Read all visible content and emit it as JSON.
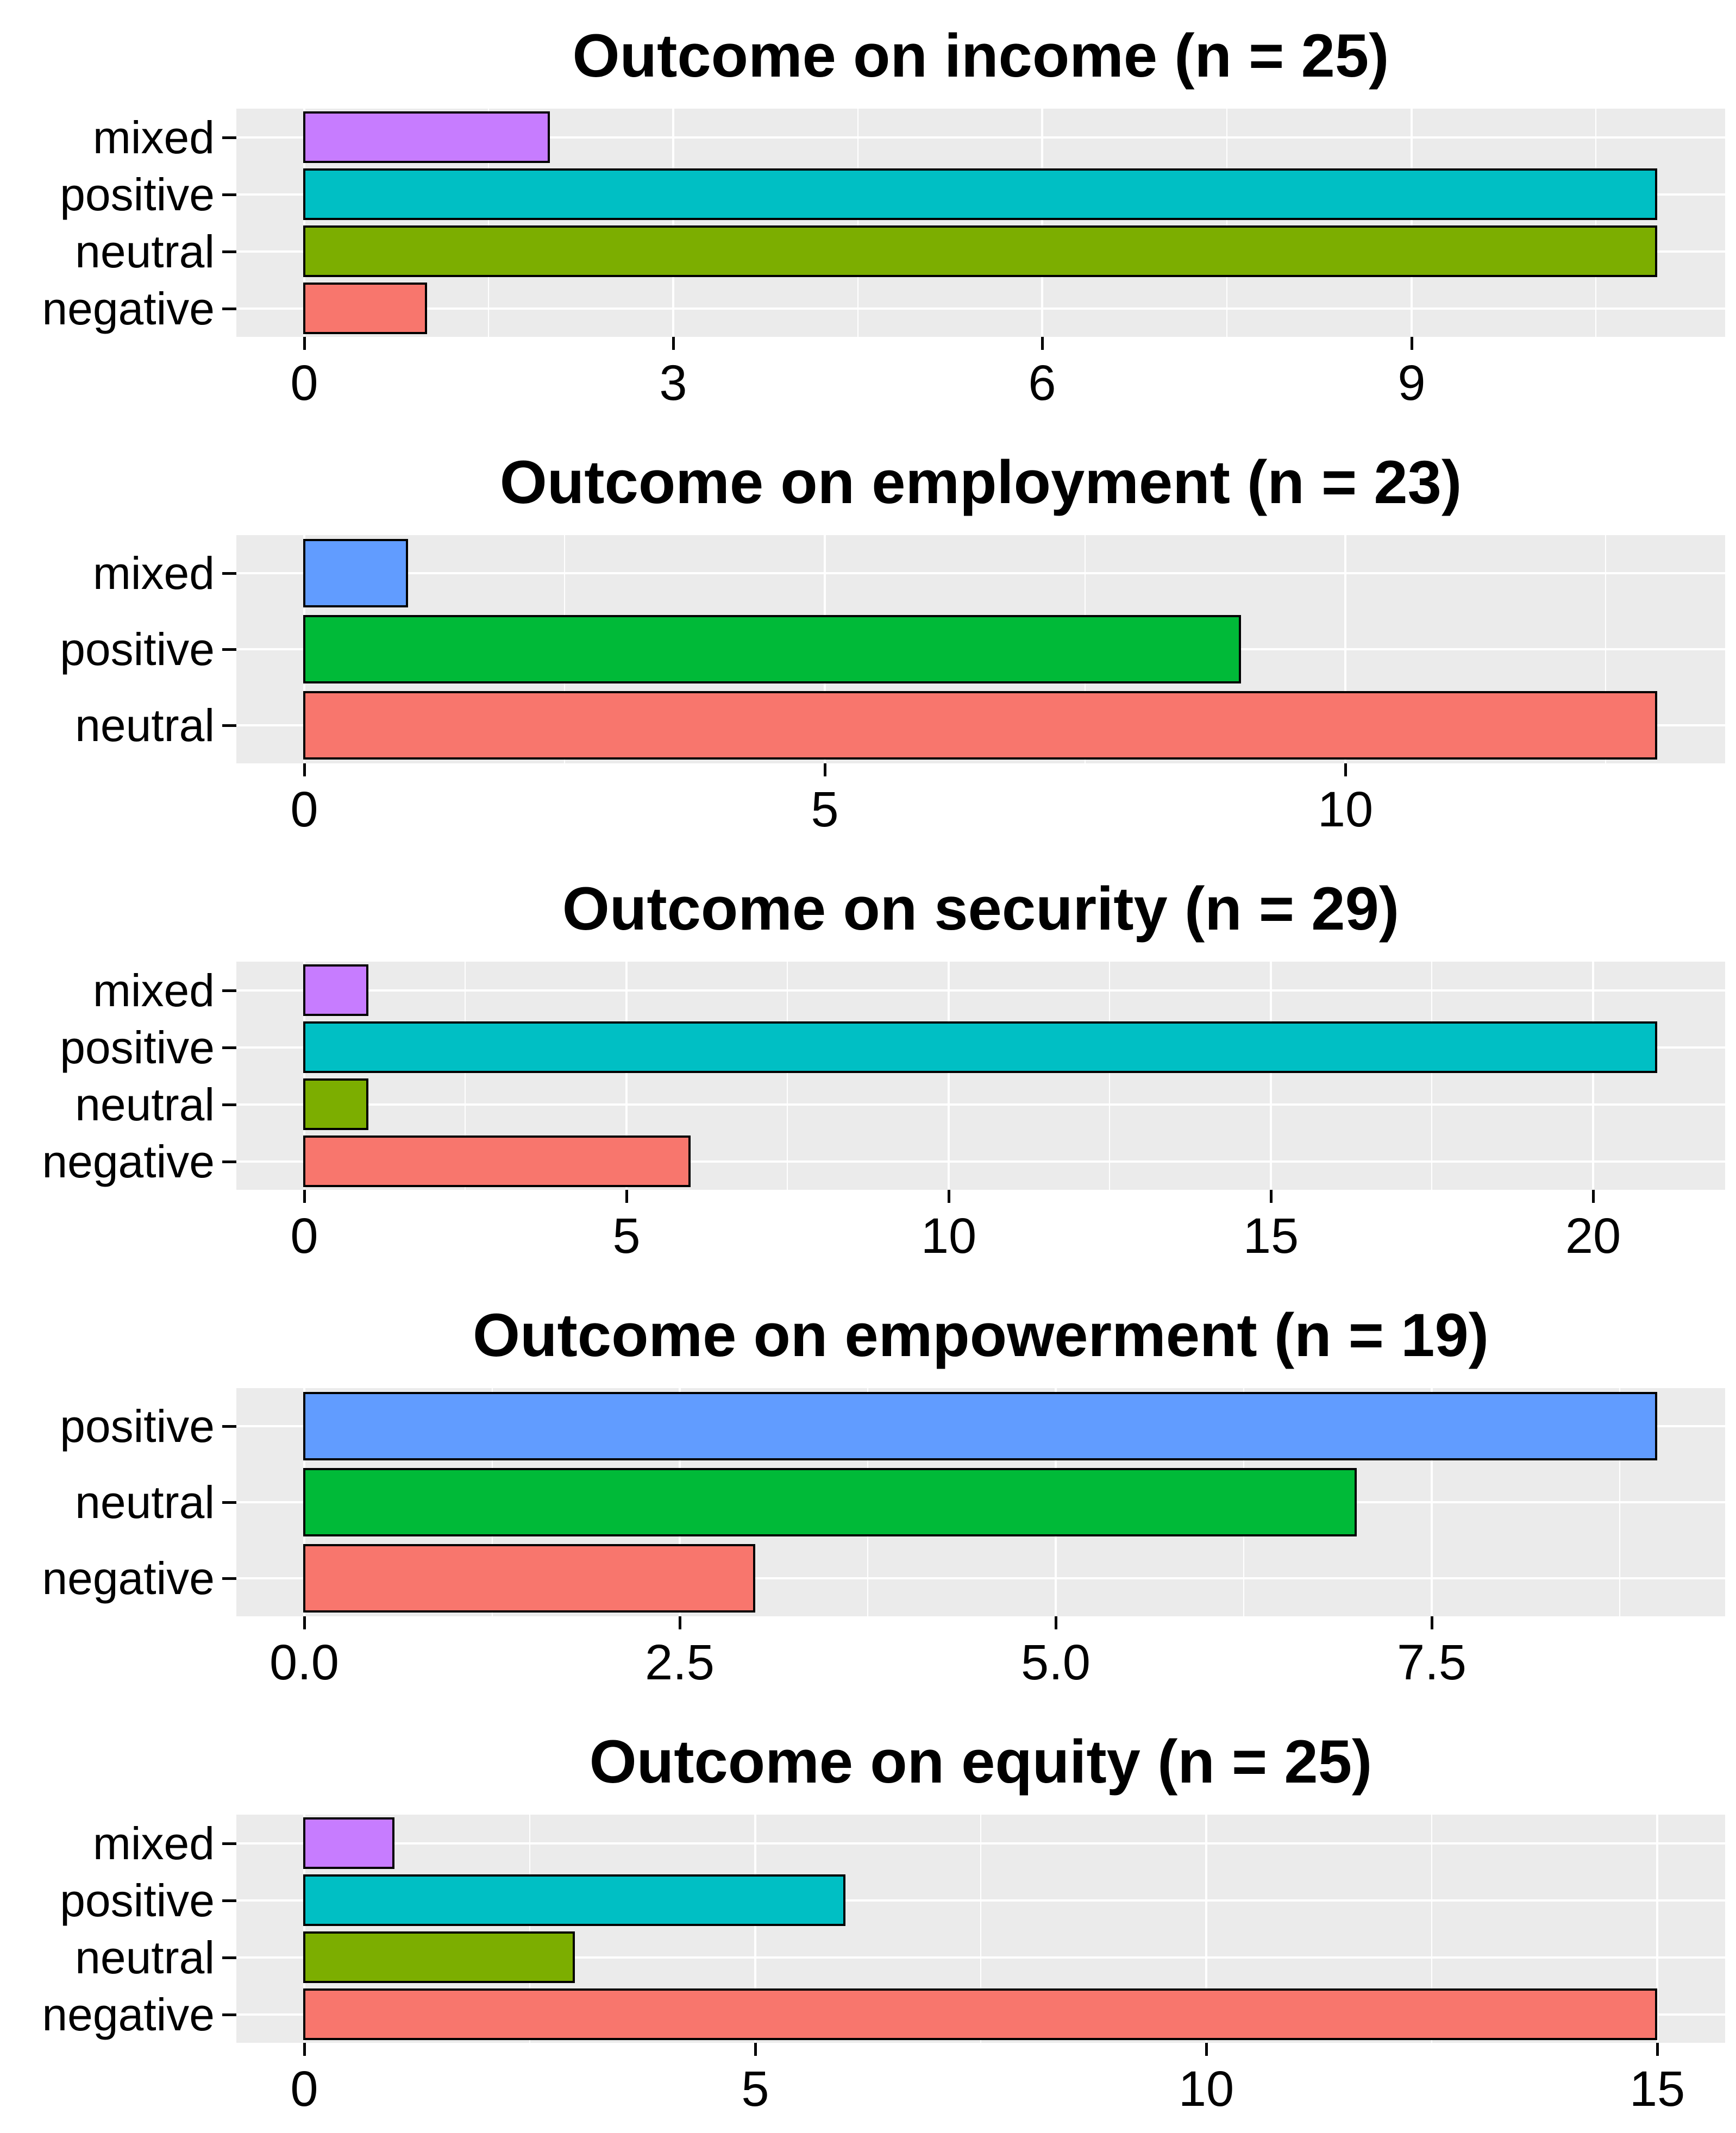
{
  "figure": {
    "background": "#FFFFFF",
    "panel_background": "#EBEBEB",
    "gridline_color": "#FFFFFF",
    "bar_outline_color": "#000000",
    "text_color": "#000000"
  },
  "chart_data": [
    {
      "type": "bar",
      "orientation": "horizontal",
      "title": "Outcome on income (n = 25)",
      "n": 25,
      "categories": [
        "mixed",
        "positive",
        "neutral",
        "negative"
      ],
      "values": [
        2,
        11,
        11,
        1
      ],
      "bar_colors": [
        "#C77CFF",
        "#00BFC4",
        "#7CAE00",
        "#F8766D"
      ],
      "xlim": [
        -0.55,
        11.55
      ],
      "x_ticks": [
        {
          "value": 0,
          "label": "0"
        },
        {
          "value": 3,
          "label": "3"
        },
        {
          "value": 6,
          "label": "6"
        },
        {
          "value": 9,
          "label": "9"
        }
      ],
      "x_minor_ticks": [
        1.5,
        4.5,
        7.5,
        10.5
      ],
      "grid": true,
      "legend": "none"
    },
    {
      "type": "bar",
      "orientation": "horizontal",
      "title": "Outcome on employment (n = 23)",
      "n": 23,
      "categories": [
        "mixed",
        "positive",
        "neutral"
      ],
      "values": [
        1,
        9,
        13
      ],
      "bar_colors": [
        "#619CFF",
        "#00BA38",
        "#F8766D"
      ],
      "xlim": [
        -0.65,
        13.65
      ],
      "x_ticks": [
        {
          "value": 0,
          "label": "0"
        },
        {
          "value": 5,
          "label": "5"
        },
        {
          "value": 10,
          "label": "10"
        }
      ],
      "x_minor_ticks": [
        2.5,
        7.5,
        12.5
      ],
      "grid": true,
      "legend": "none"
    },
    {
      "type": "bar",
      "orientation": "horizontal",
      "title": "Outcome on security (n = 29)",
      "n": 29,
      "categories": [
        "mixed",
        "positive",
        "neutral",
        "negative"
      ],
      "values": [
        1,
        21,
        1,
        6
      ],
      "bar_colors": [
        "#C77CFF",
        "#00BFC4",
        "#7CAE00",
        "#F8766D"
      ],
      "xlim": [
        -1.05,
        22.05
      ],
      "x_ticks": [
        {
          "value": 0,
          "label": "0"
        },
        {
          "value": 5,
          "label": "5"
        },
        {
          "value": 10,
          "label": "10"
        },
        {
          "value": 15,
          "label": "15"
        },
        {
          "value": 20,
          "label": "20"
        }
      ],
      "x_minor_ticks": [
        2.5,
        7.5,
        12.5,
        17.5
      ],
      "grid": true,
      "legend": "none"
    },
    {
      "type": "bar",
      "orientation": "horizontal",
      "title": "Outcome on empowerment (n = 19)",
      "n": 19,
      "categories": [
        "positive",
        "neutral",
        "negative"
      ],
      "values": [
        9,
        7,
        3
      ],
      "bar_colors": [
        "#619CFF",
        "#00BA38",
        "#F8766D"
      ],
      "xlim": [
        -0.45,
        9.45
      ],
      "x_ticks": [
        {
          "value": 0,
          "label": "0.0"
        },
        {
          "value": 2.5,
          "label": "2.5"
        },
        {
          "value": 5,
          "label": "5.0"
        },
        {
          "value": 7.5,
          "label": "7.5"
        }
      ],
      "x_minor_ticks": [
        1.25,
        3.75,
        6.25,
        8.75
      ],
      "grid": true,
      "legend": "none"
    },
    {
      "type": "bar",
      "orientation": "horizontal",
      "title": "Outcome on equity (n = 25)",
      "n": 25,
      "categories": [
        "mixed",
        "positive",
        "neutral",
        "negative"
      ],
      "values": [
        1,
        6,
        3,
        15
      ],
      "bar_colors": [
        "#C77CFF",
        "#00BFC4",
        "#7CAE00",
        "#F8766D"
      ],
      "xlim": [
        -0.75,
        15.75
      ],
      "x_ticks": [
        {
          "value": 0,
          "label": "0"
        },
        {
          "value": 5,
          "label": "5"
        },
        {
          "value": 10,
          "label": "10"
        },
        {
          "value": 15,
          "label": "15"
        }
      ],
      "x_minor_ticks": [
        2.5,
        7.5,
        12.5
      ],
      "grid": true,
      "legend": "none"
    }
  ]
}
